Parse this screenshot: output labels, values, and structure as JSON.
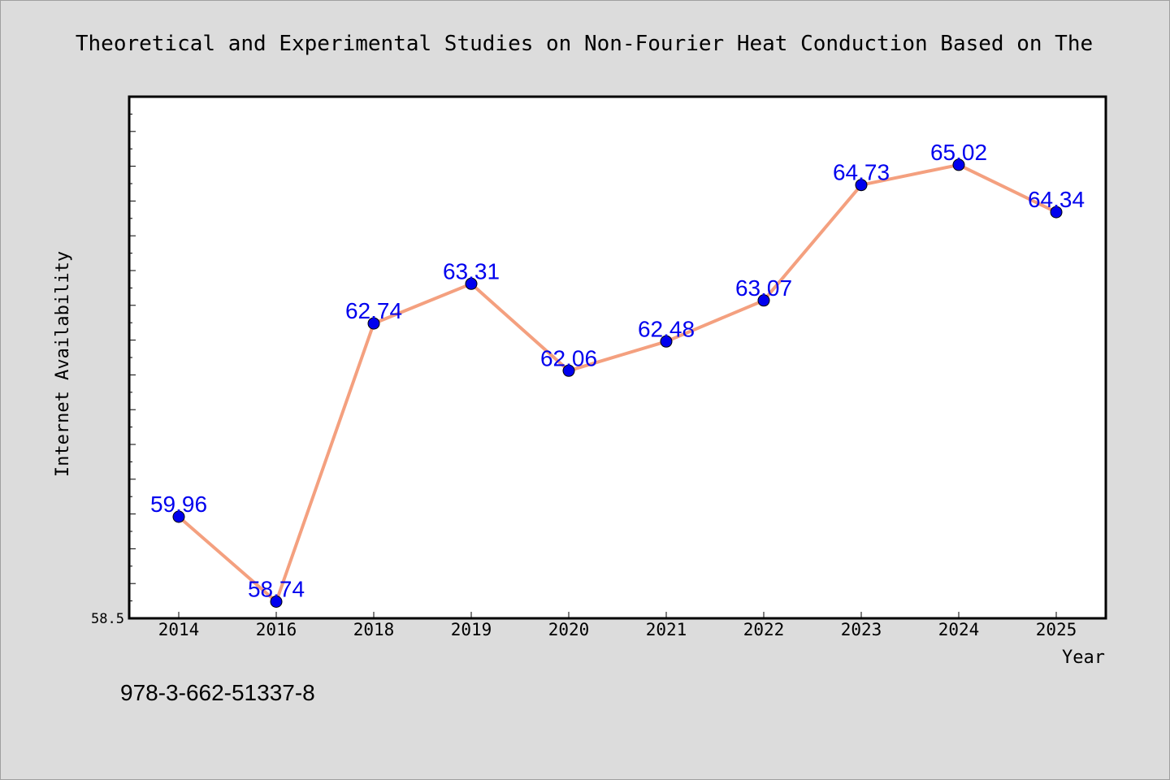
{
  "chart_data": {
    "type": "line",
    "title": "Theoretical and Experimental Studies on Non-Fourier Heat Conduction Based on The",
    "xlabel": "Year",
    "ylabel": "Internet Availability",
    "categories": [
      "2014",
      "2016",
      "2018",
      "2019",
      "2020",
      "2021",
      "2022",
      "2023",
      "2024",
      "2025"
    ],
    "values": [
      59.96,
      58.74,
      62.74,
      63.31,
      62.06,
      62.48,
      63.07,
      64.73,
      65.02,
      64.34
    ],
    "data_labels": [
      "59.96",
      "58.74",
      "62.74",
      "63.31",
      "62.06",
      "62.48",
      "63.07",
      "64.73",
      "65.02",
      "64.34"
    ],
    "ylim": [
      58.5,
      66
    ],
    "yticks_labeled": [
      "58.5"
    ],
    "grid": false,
    "line_color": "#f4a07f",
    "marker_color": "#0000ee",
    "label_color": "#0000ee",
    "background_color": "#dcdcdc",
    "plot_background_color": "#ffffff"
  },
  "footer_text": "978-3-662-51337-8"
}
